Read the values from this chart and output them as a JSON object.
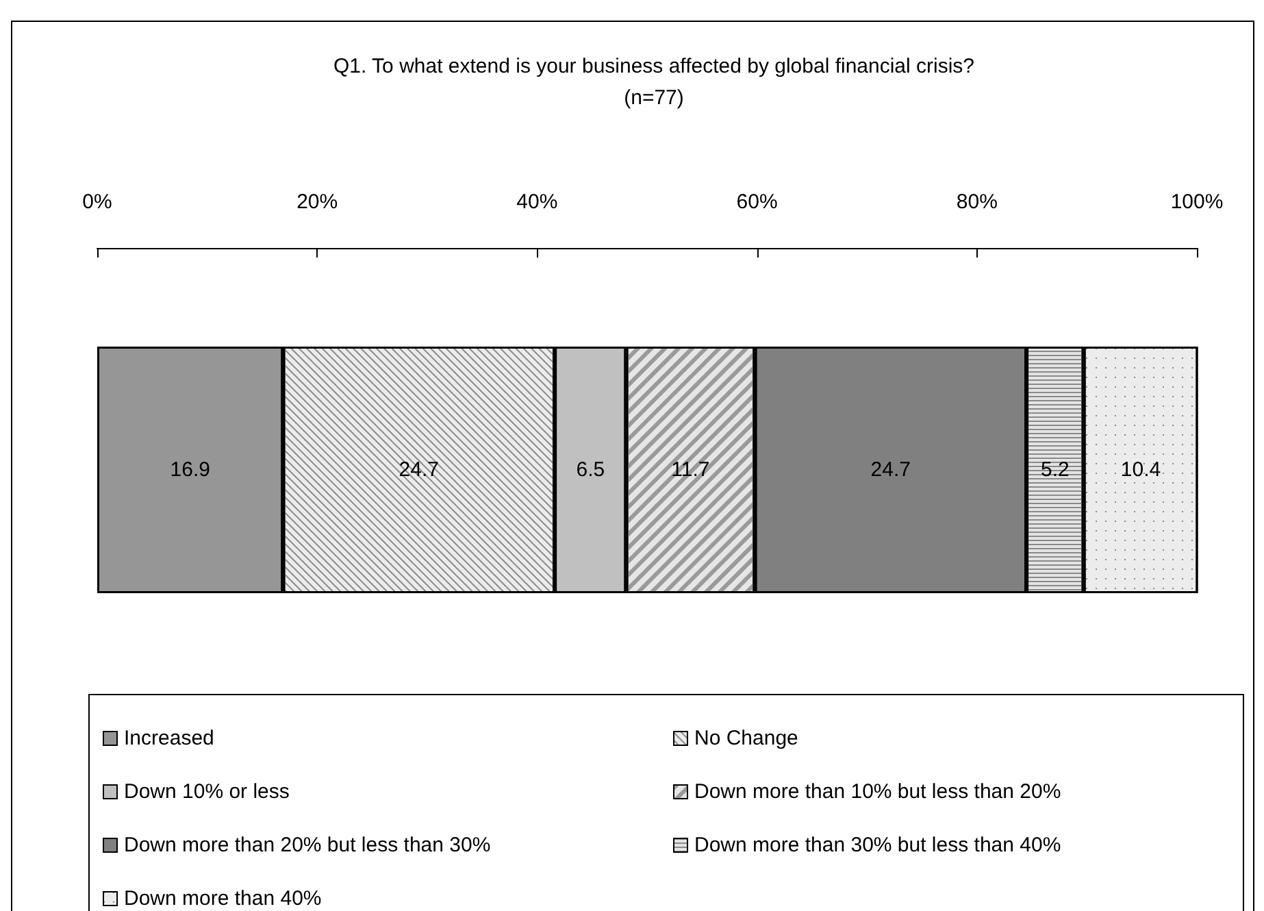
{
  "chart_data": {
    "type": "bar",
    "orientation": "horizontal",
    "stacked": true,
    "title": "Q1. To what extend is your business affected by global financial crisis?",
    "subtitle": "(n=77)",
    "categories": [
      null
    ],
    "series": [
      {
        "name": "Increased",
        "color": "#969696",
        "values": [
          16.9
        ]
      },
      {
        "name": "No Change",
        "color": "#ececec",
        "values": [
          24.7
        ]
      },
      {
        "name": "Down 10% or less",
        "color": "#c0c0c0",
        "values": [
          6.5
        ]
      },
      {
        "name": "Down more than 10% but less than 20%",
        "color": "#e6e6e6",
        "values": [
          11.7
        ]
      },
      {
        "name": "Down more than 20% but less than 30%",
        "color": "#808080",
        "values": [
          24.7
        ]
      },
      {
        "name": "Down more than 30% but less than 40%",
        "color": "#e4e4e4",
        "values": [
          5.2
        ]
      },
      {
        "name": "Down more than 40%",
        "color": "#ececec",
        "values": [
          10.4
        ]
      }
    ],
    "xlim": [
      0,
      100
    ],
    "xticks": [
      {
        "value": 0,
        "label": "0%"
      },
      {
        "value": 20,
        "label": "20%"
      },
      {
        "value": 40,
        "label": "40%"
      },
      {
        "value": 60,
        "label": "60%"
      },
      {
        "value": 80,
        "label": "80%"
      },
      {
        "value": 100,
        "label": "100%"
      }
    ],
    "data_labels": true,
    "legend": "bottom"
  }
}
